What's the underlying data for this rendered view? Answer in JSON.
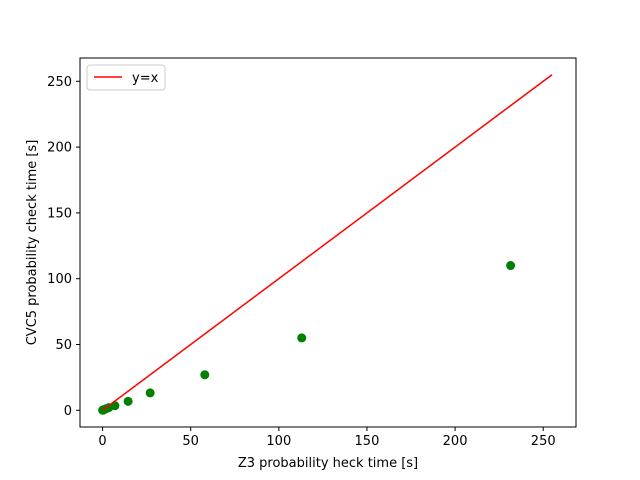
{
  "chart_data": {
    "type": "scatter",
    "title": "",
    "xlabel": "Z3 probability heck time [s]",
    "ylabel": "CVC5 probability check time [s]",
    "xlim": [
      -12.8,
      268.6
    ],
    "ylim": [
      -12.7,
      267.7
    ],
    "xticks": [
      0,
      50,
      100,
      150,
      200,
      250
    ],
    "yticks": [
      0,
      50,
      100,
      150,
      200,
      250
    ],
    "grid": false,
    "legend": {
      "placement": "top-left",
      "entries": [
        "y=x"
      ]
    },
    "series": [
      {
        "type": "scatter",
        "color": "#008000",
        "x": [
          0.05,
          0.2,
          0.5,
          1.0,
          2.0,
          3.5,
          7.0,
          14.5,
          27.0,
          58.0,
          113.0,
          231.5
        ],
        "y": [
          0.05,
          0.15,
          0.3,
          0.6,
          1.2,
          2.0,
          3.5,
          6.8,
          13.2,
          27.0,
          55.0,
          110.0
        ]
      },
      {
        "name": "y=x",
        "type": "line",
        "color": "#ff0000",
        "x": [
          0,
          255
        ],
        "y": [
          0,
          255
        ]
      }
    ]
  }
}
